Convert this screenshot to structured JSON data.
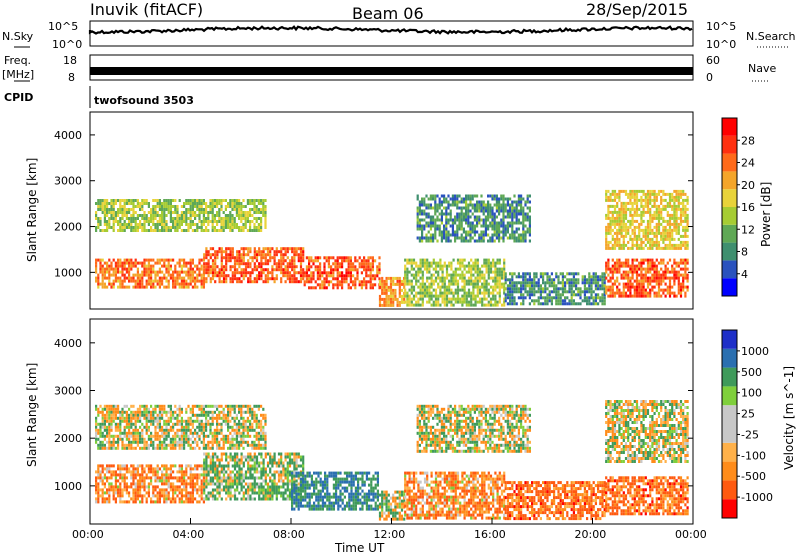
{
  "header": {
    "title": "Inuvik (fitACF)",
    "beam": "Beam 06",
    "date": "28/Sep/2015"
  },
  "panels": {
    "nsky": {
      "left_label": "N.Sky",
      "right_label": "N.Search",
      "ticks_left": [
        "10^5",
        "10^0"
      ],
      "ticks_right": [
        "10^5",
        "10^0"
      ]
    },
    "freq": {
      "left_label_1": "Freq.",
      "left_label_2": "[MHz]",
      "ticks_left": [
        "18",
        "8"
      ],
      "right_label": "Nave",
      "ticks_right": [
        "60",
        "0"
      ]
    },
    "cpid": {
      "label": "CPID",
      "value": "twofsound 3503"
    }
  },
  "colors": {
    "power_scale": [
      "#0000ff",
      "#2a52be",
      "#3f8f6f",
      "#5fa855",
      "#a6cc33",
      "#e8d33a",
      "#f4a52a",
      "#ff6a1a",
      "#ff3010",
      "#ff0000"
    ],
    "velocity_scale": [
      "#ff0000",
      "#ff5a10",
      "#ff8c1a",
      "#ffb14a",
      "#c8c8c8",
      "#c8c8c8",
      "#7fcf3b",
      "#3f9a5a",
      "#2a6fb0",
      "#1e2fc8"
    ]
  },
  "chart_data": [
    {
      "type": "heatmap",
      "name": "power",
      "ylabel": "Slant Range [km]",
      "yticks": [
        "1000",
        "2000",
        "3000",
        "4000"
      ],
      "ylim": [
        200,
        4500
      ],
      "xlim": [
        0,
        24
      ],
      "colorbar_label": "Power [dB]",
      "colorbar_ticks": [
        "28",
        "24",
        "20",
        "16",
        "12",
        "8",
        "4"
      ],
      "colorbar_range": [
        0,
        32
      ],
      "regions": [
        {
          "x": [
            0.2,
            4.5
          ],
          "y": [
            650,
            1300
          ],
          "level": 24
        },
        {
          "x": [
            4.5,
            8.5
          ],
          "y": [
            800,
            1550
          ],
          "level": 26
        },
        {
          "x": [
            8.5,
            11.5
          ],
          "y": [
            650,
            1350
          ],
          "level": 26
        },
        {
          "x": [
            11.5,
            12.5
          ],
          "y": [
            300,
            900
          ],
          "level": 22
        },
        {
          "x": [
            12.5,
            16.5
          ],
          "y": [
            300,
            1300
          ],
          "level": 14
        },
        {
          "x": [
            16.5,
            20.5
          ],
          "y": [
            300,
            1000
          ],
          "level": 8
        },
        {
          "x": [
            20.5,
            23.8
          ],
          "y": [
            500,
            1300
          ],
          "level": 26
        },
        {
          "x": [
            0.2,
            7.0
          ],
          "y": [
            1900,
            2600
          ],
          "level": 14
        },
        {
          "x": [
            13.0,
            17.5
          ],
          "y": [
            1700,
            2700
          ],
          "level": 8
        },
        {
          "x": [
            20.5,
            23.8
          ],
          "y": [
            1500,
            2800
          ],
          "level": 18
        }
      ]
    },
    {
      "type": "heatmap",
      "name": "velocity",
      "ylabel": "Slant Range [km]",
      "yticks": [
        "1000",
        "2000",
        "3000",
        "4000"
      ],
      "ylim": [
        200,
        4500
      ],
      "xlim": [
        0,
        24
      ],
      "xlabel": "Time UT",
      "xticks": [
        "00:00",
        "04:00",
        "08:00",
        "12:00",
        "16:00",
        "20:00",
        "00:00"
      ],
      "colorbar_label": "Velocity [m s^-1]",
      "colorbar_ticks": [
        "1000",
        "500",
        "100",
        "25",
        "-25",
        "-100",
        "-500",
        "-1000"
      ],
      "regions": [
        {
          "x": [
            0.2,
            4.5
          ],
          "y": [
            650,
            1450
          ],
          "velocity": -200
        },
        {
          "x": [
            4.5,
            8.5
          ],
          "y": [
            700,
            1700
          ],
          "velocity": 100
        },
        {
          "x": [
            8.0,
            11.5
          ],
          "y": [
            500,
            1300
          ],
          "velocity": 500
        },
        {
          "x": [
            11.5,
            12.5
          ],
          "y": [
            300,
            900
          ],
          "velocity": 0
        },
        {
          "x": [
            12.5,
            16.5
          ],
          "y": [
            300,
            1300
          ],
          "velocity": -200
        },
        {
          "x": [
            16.5,
            20.5
          ],
          "y": [
            300,
            1100
          ],
          "velocity": -300
        },
        {
          "x": [
            20.5,
            23.8
          ],
          "y": [
            400,
            1200
          ],
          "velocity": -300
        },
        {
          "x": [
            0.2,
            7.0
          ],
          "y": [
            1800,
            2700
          ],
          "velocity": 0
        },
        {
          "x": [
            13.0,
            17.5
          ],
          "y": [
            1700,
            2700
          ],
          "velocity": 0
        },
        {
          "x": [
            20.5,
            23.8
          ],
          "y": [
            1500,
            2800
          ],
          "velocity": 0
        }
      ]
    }
  ]
}
